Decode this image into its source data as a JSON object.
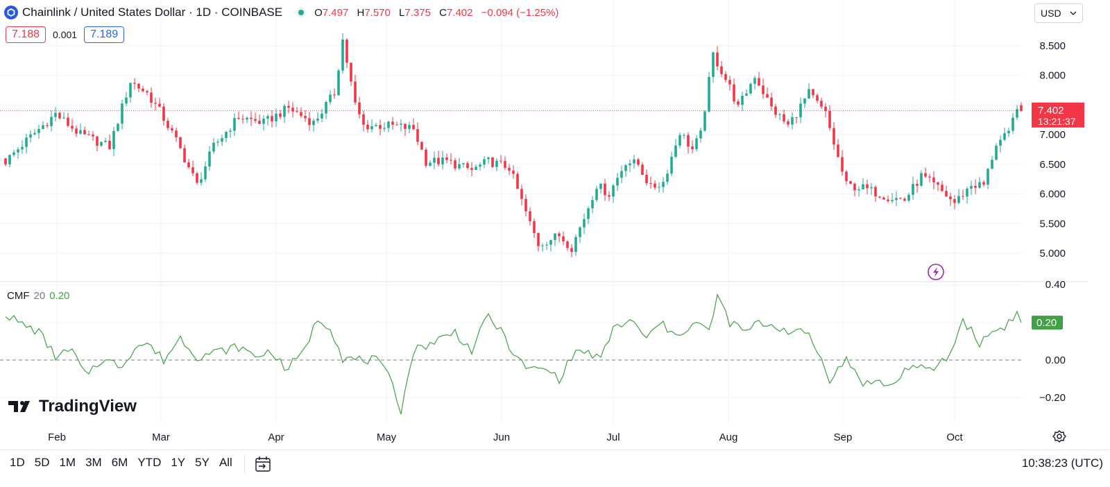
{
  "header": {
    "symbol_title": "Chainlink / United States Dollar · 1D · COINBASE",
    "ohlc": [
      {
        "k": "O",
        "v": "7.497"
      },
      {
        "k": "H",
        "v": "7.570"
      },
      {
        "k": "L",
        "v": "7.375"
      },
      {
        "k": "C",
        "v": "7.402"
      }
    ],
    "change": "−0.094 (−1.25%)",
    "currency": "USD"
  },
  "quote": {
    "bid": "7.188",
    "spread": "0.001",
    "ask": "7.189"
  },
  "price_label": {
    "value": "7.402",
    "countdown": "13:21:37"
  },
  "cmf_legend": {
    "name": "CMF",
    "period": "20",
    "value": "0.20"
  },
  "cmf_label": "0.20",
  "brand": "TradingView",
  "ranges": [
    "1D",
    "5D",
    "1M",
    "3M",
    "6M",
    "YTD",
    "1Y",
    "5Y",
    "All"
  ],
  "clock": "10:38:23 (UTC)",
  "colors": {
    "up": "#22ab94",
    "down": "#f23645",
    "cmf": "#43a047",
    "grid": "#f0f3fa"
  },
  "chart_data": [
    {
      "type": "candlestick",
      "title": "Chainlink / United States Dollar · 1D · COINBASE",
      "x_ticks": [
        "Feb",
        "Mar",
        "Apr",
        "May",
        "Jun",
        "Jul",
        "Aug",
        "Sep",
        "Oct"
      ],
      "y_ticks": [
        "5.000",
        "5.500",
        "6.000",
        "6.500",
        "7.000",
        "7.500",
        "8.000",
        "8.500"
      ],
      "ylim": [
        4.6,
        8.9
      ],
      "last_price": 7.402,
      "anchors": [
        {
          "day": 0,
          "close": 6.55
        },
        {
          "day": 5,
          "close": 6.9
        },
        {
          "day": 12,
          "close": 7.35
        },
        {
          "day": 18,
          "close": 7.0
        },
        {
          "day": 25,
          "close": 6.8
        },
        {
          "day": 30,
          "close": 7.9
        },
        {
          "day": 34,
          "close": 7.7
        },
        {
          "day": 37,
          "close": 7.4
        },
        {
          "day": 41,
          "close": 6.9
        },
        {
          "day": 46,
          "close": 6.15
        },
        {
          "day": 50,
          "close": 6.8
        },
        {
          "day": 56,
          "close": 7.3
        },
        {
          "day": 62,
          "close": 7.2
        },
        {
          "day": 68,
          "close": 7.45
        },
        {
          "day": 74,
          "close": 7.2
        },
        {
          "day": 79,
          "close": 7.7
        },
        {
          "day": 81,
          "close": 8.6
        },
        {
          "day": 84,
          "close": 7.5
        },
        {
          "day": 86,
          "close": 7.15
        },
        {
          "day": 93,
          "close": 7.15
        },
        {
          "day": 98,
          "close": 7.1
        },
        {
          "day": 101,
          "close": 6.55
        },
        {
          "day": 106,
          "close": 6.55
        },
        {
          "day": 112,
          "close": 6.4
        },
        {
          "day": 116,
          "close": 6.55
        },
        {
          "day": 121,
          "close": 6.45
        },
        {
          "day": 126,
          "close": 5.5
        },
        {
          "day": 128,
          "close": 5.15
        },
        {
          "day": 133,
          "close": 5.3
        },
        {
          "day": 136,
          "close": 5.1
        },
        {
          "day": 139,
          "close": 5.6
        },
        {
          "day": 142,
          "close": 6.15
        },
        {
          "day": 145,
          "close": 6.0
        },
        {
          "day": 149,
          "close": 6.55
        },
        {
          "day": 152,
          "close": 6.5
        },
        {
          "day": 155,
          "close": 6.1
        },
        {
          "day": 158,
          "close": 6.2
        },
        {
          "day": 162,
          "close": 7.05
        },
        {
          "day": 165,
          "close": 6.75
        },
        {
          "day": 167,
          "close": 7.0
        },
        {
          "day": 170,
          "close": 8.35
        },
        {
          "day": 174,
          "close": 7.8
        },
        {
          "day": 176,
          "close": 7.45
        },
        {
          "day": 180,
          "close": 8.0
        },
        {
          "day": 184,
          "close": 7.45
        },
        {
          "day": 188,
          "close": 7.15
        },
        {
          "day": 193,
          "close": 7.7
        },
        {
          "day": 197,
          "close": 7.35
        },
        {
          "day": 200,
          "close": 6.6
        },
        {
          "day": 202,
          "close": 6.15
        },
        {
          "day": 206,
          "close": 6.1
        },
        {
          "day": 212,
          "close": 5.95
        },
        {
          "day": 216,
          "close": 5.9
        },
        {
          "day": 220,
          "close": 6.3
        },
        {
          "day": 224,
          "close": 6.1
        },
        {
          "day": 228,
          "close": 5.85
        },
        {
          "day": 232,
          "close": 6.15
        },
        {
          "day": 235,
          "close": 6.15
        },
        {
          "day": 238,
          "close": 6.85
        },
        {
          "day": 241,
          "close": 7.0
        },
        {
          "day": 243,
          "close": 7.5
        },
        {
          "day": 244,
          "close": 7.402
        }
      ]
    },
    {
      "type": "line",
      "title": "CMF 20",
      "y_ticks": [
        "−0.20",
        "0.00",
        "0.20",
        "0.40"
      ],
      "ylim": [
        -0.3,
        0.42
      ],
      "zero_line": 0,
      "last_value": 0.2,
      "anchors": [
        {
          "day": 0,
          "value": 0.25
        },
        {
          "day": 3,
          "value": 0.2
        },
        {
          "day": 8,
          "value": 0.15
        },
        {
          "day": 12,
          "value": 0.02
        },
        {
          "day": 16,
          "value": 0.05
        },
        {
          "day": 19,
          "value": -0.08
        },
        {
          "day": 23,
          "value": 0.0
        },
        {
          "day": 28,
          "value": -0.03
        },
        {
          "day": 31,
          "value": 0.07
        },
        {
          "day": 34,
          "value": 0.09
        },
        {
          "day": 38,
          "value": 0.0
        },
        {
          "day": 42,
          "value": 0.12
        },
        {
          "day": 46,
          "value": 0.02
        },
        {
          "day": 50,
          "value": 0.04
        },
        {
          "day": 56,
          "value": 0.07
        },
        {
          "day": 60,
          "value": 0.02
        },
        {
          "day": 64,
          "value": 0.05
        },
        {
          "day": 67,
          "value": -0.05
        },
        {
          "day": 71,
          "value": 0.02
        },
        {
          "day": 75,
          "value": 0.22
        },
        {
          "day": 78,
          "value": 0.18
        },
        {
          "day": 81,
          "value": 0.01
        },
        {
          "day": 85,
          "value": 0.0
        },
        {
          "day": 89,
          "value": 0.0
        },
        {
          "day": 93,
          "value": -0.12
        },
        {
          "day": 95,
          "value": -0.27
        },
        {
          "day": 98,
          "value": 0.05
        },
        {
          "day": 103,
          "value": 0.1
        },
        {
          "day": 108,
          "value": 0.15
        },
        {
          "day": 112,
          "value": 0.05
        },
        {
          "day": 116,
          "value": 0.24
        },
        {
          "day": 120,
          "value": 0.12
        },
        {
          "day": 123,
          "value": 0.0
        },
        {
          "day": 126,
          "value": -0.05
        },
        {
          "day": 130,
          "value": -0.05
        },
        {
          "day": 133,
          "value": -0.1
        },
        {
          "day": 137,
          "value": 0.05
        },
        {
          "day": 141,
          "value": 0.03
        },
        {
          "day": 143,
          "value": 0.0
        },
        {
          "day": 146,
          "value": 0.17
        },
        {
          "day": 150,
          "value": 0.21
        },
        {
          "day": 154,
          "value": 0.12
        },
        {
          "day": 158,
          "value": 0.2
        },
        {
          "day": 160,
          "value": 0.13
        },
        {
          "day": 163,
          "value": 0.16
        },
        {
          "day": 166,
          "value": 0.2
        },
        {
          "day": 169,
          "value": 0.15
        },
        {
          "day": 171,
          "value": 0.34
        },
        {
          "day": 174,
          "value": 0.2
        },
        {
          "day": 178,
          "value": 0.15
        },
        {
          "day": 181,
          "value": 0.2
        },
        {
          "day": 185,
          "value": 0.18
        },
        {
          "day": 189,
          "value": 0.15
        },
        {
          "day": 193,
          "value": 0.14
        },
        {
          "day": 196,
          "value": 0.0
        },
        {
          "day": 198,
          "value": -0.1
        },
        {
          "day": 202,
          "value": 0.0
        },
        {
          "day": 206,
          "value": -0.12
        },
        {
          "day": 210,
          "value": -0.12
        },
        {
          "day": 213,
          "value": -0.14
        },
        {
          "day": 217,
          "value": -0.03
        },
        {
          "day": 222,
          "value": -0.06
        },
        {
          "day": 227,
          "value": 0.03
        },
        {
          "day": 230,
          "value": 0.22
        },
        {
          "day": 234,
          "value": 0.09
        },
        {
          "day": 237,
          "value": 0.15
        },
        {
          "day": 240,
          "value": 0.18
        },
        {
          "day": 243,
          "value": 0.25
        },
        {
          "day": 244,
          "value": 0.2
        }
      ]
    }
  ]
}
